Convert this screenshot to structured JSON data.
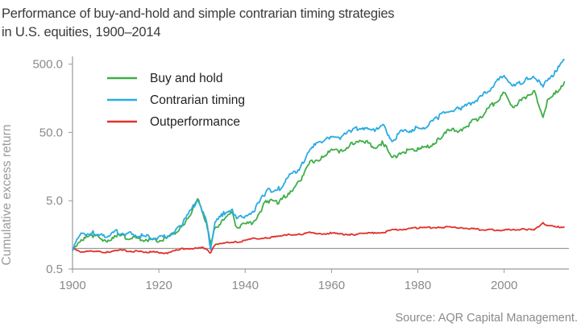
{
  "header": {
    "title_line1": "Performance of buy-and-hold and simple contrarian timing strategies",
    "title_line2": "in U.S. equities, 1900–2014"
  },
  "footer": {
    "source": "Source: AQR Capital Management."
  },
  "chart_data": {
    "type": "line",
    "ylabel": "Cumulative excess return",
    "xlabel": "",
    "xlim": [
      1900,
      2015
    ],
    "ylim": [
      0.5,
      650
    ],
    "yscale": "log",
    "x_ticks": [
      1900,
      1920,
      1940,
      1960,
      1980,
      2000
    ],
    "x_tick_labels": [
      "1900",
      "1920",
      "1940",
      "1960",
      "1980",
      "2000"
    ],
    "y_ticks": [
      0.5,
      5.0,
      50.0,
      500.0
    ],
    "y_tick_labels": [
      "0.5",
      "5.0",
      "50.0",
      "500.0"
    ],
    "reference_line": 1.0,
    "grid": false,
    "legend_position": "top-left",
    "x": [
      1900,
      1902,
      1905,
      1908,
      1910,
      1915,
      1920,
      1922,
      1925,
      1927,
      1929,
      1930,
      1931,
      1932,
      1933,
      1935,
      1937,
      1938,
      1940,
      1942,
      1945,
      1948,
      1950,
      1953,
      1955,
      1958,
      1960,
      1962,
      1965,
      1968,
      1970,
      1972,
      1974,
      1976,
      1980,
      1982,
      1985,
      1987,
      1990,
      1995,
      2000,
      2002,
      2005,
      2007,
      2009,
      2010,
      2012,
      2014
    ],
    "series": [
      {
        "name": "Buy and hold",
        "color": "#3fae49",
        "values": [
          1.0,
          1.35,
          1.55,
          1.3,
          1.55,
          1.4,
          1.3,
          1.4,
          2.0,
          3.0,
          5.2,
          3.6,
          2.4,
          1.1,
          2.0,
          2.6,
          3.2,
          2.1,
          2.2,
          2.5,
          5.0,
          4.8,
          6.5,
          10.0,
          18.0,
          22.0,
          27.0,
          26.0,
          35.0,
          36.0,
          30.0,
          36.0,
          20.0,
          26.0,
          28.0,
          30.0,
          40.0,
          52.0,
          55.0,
          90.0,
          190.0,
          120.0,
          160.0,
          190.0,
          85.0,
          140.0,
          190.0,
          280.0
        ]
      },
      {
        "name": "Contrarian timing",
        "color": "#2aabe2",
        "values": [
          1.0,
          1.6,
          1.7,
          1.4,
          1.75,
          1.55,
          1.4,
          1.5,
          2.1,
          3.2,
          5.3,
          3.7,
          2.5,
          1.0,
          2.4,
          3.2,
          3.8,
          2.7,
          3.0,
          3.5,
          7.0,
          7.5,
          11.0,
          16.0,
          30.0,
          36.0,
          45.0,
          42.0,
          55.0,
          60.0,
          52.0,
          62.0,
          38.0,
          50.0,
          58.0,
          62.0,
          85.0,
          105.0,
          110.0,
          170.0,
          350.0,
          230.0,
          300.0,
          340.0,
          220.0,
          300.0,
          390.0,
          580.0
        ]
      },
      {
        "name": "Outperformance",
        "color": "#e2302b",
        "values": [
          1.0,
          0.9,
          0.9,
          0.88,
          0.95,
          0.9,
          0.88,
          0.85,
          0.98,
          1.0,
          1.0,
          1.02,
          1.0,
          0.85,
          1.15,
          1.22,
          1.2,
          1.25,
          1.3,
          1.4,
          1.42,
          1.5,
          1.6,
          1.6,
          1.7,
          1.65,
          1.68,
          1.62,
          1.6,
          1.65,
          1.7,
          1.72,
          1.85,
          1.9,
          2.0,
          2.0,
          2.05,
          2.05,
          2.0,
          1.88,
          1.85,
          1.9,
          1.9,
          1.85,
          2.4,
          2.15,
          2.05,
          2.07
        ]
      }
    ]
  }
}
